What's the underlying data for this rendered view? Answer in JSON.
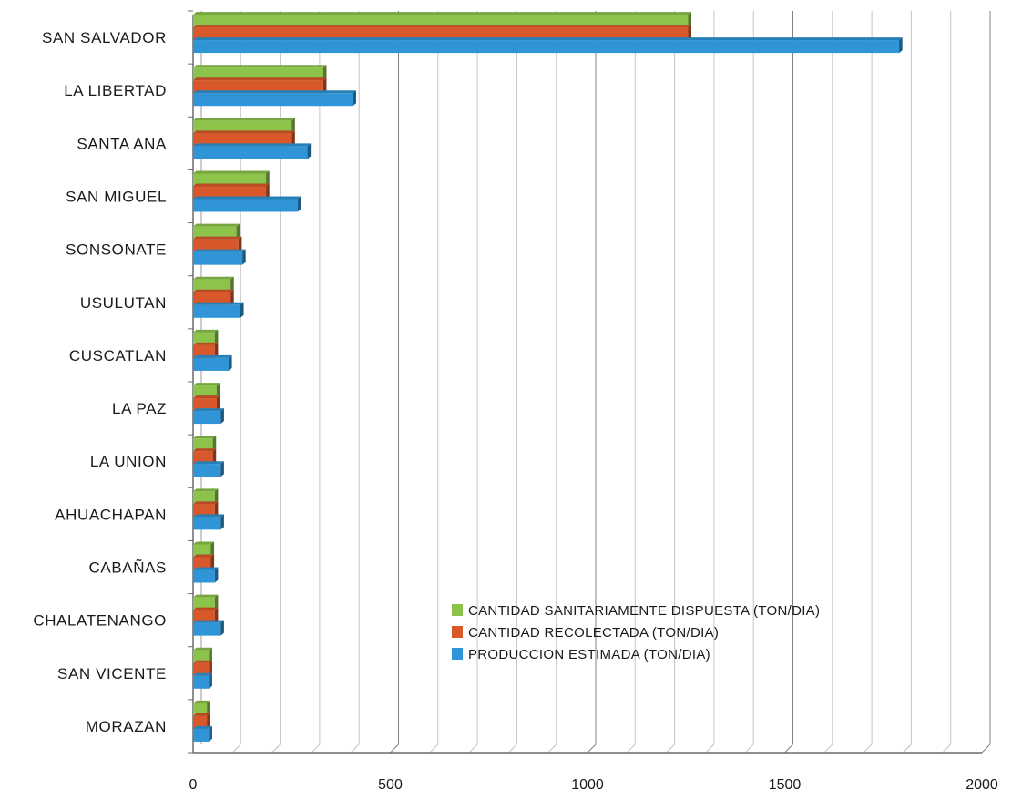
{
  "chart_data": {
    "type": "bar",
    "orientation": "horizontal",
    "categories": [
      "SAN SALVADOR",
      "LA LIBERTAD",
      "SANTA ANA",
      "SAN MIGUEL",
      "SONSONATE",
      "USULUTAN",
      "CUSCATLAN",
      "LA PAZ",
      "LA UNION",
      "AHUACHAPAN",
      "CABAÑAS",
      "CHALATENANGO",
      "SAN VICENTE",
      "MORAZAN"
    ],
    "series": [
      {
        "name": "CANTIDAD SANITARIAMENTE  DISPUESTA  (TON/DIA)",
        "color": "#8cc34a",
        "values": [
          1255,
          330,
          250,
          185,
          110,
          95,
          55,
          60,
          50,
          55,
          45,
          55,
          40,
          35
        ]
      },
      {
        "name": "CANTIDAD RECOLECTADA  (TON/DIA)",
        "color": "#d9582b",
        "values": [
          1255,
          330,
          250,
          185,
          115,
          95,
          55,
          60,
          50,
          55,
          45,
          55,
          40,
          35
        ]
      },
      {
        "name": "PRODUCCION ESTIMADA  (TON/DIA)",
        "color": "#2f95d6",
        "values": [
          1790,
          405,
          290,
          265,
          125,
          120,
          90,
          70,
          70,
          70,
          55,
          70,
          40,
          40
        ]
      }
    ],
    "xticks": [
      "0",
      "500",
      "1000",
      "1500",
      "2000"
    ],
    "xlim": [
      0,
      2000
    ],
    "legend_position": "bottom-right",
    "grid": true
  }
}
